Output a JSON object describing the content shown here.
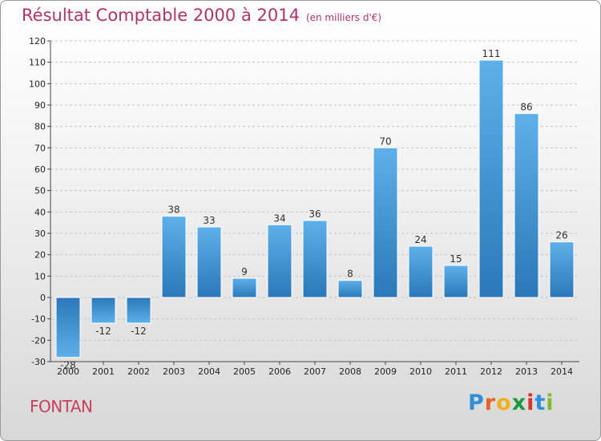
{
  "chart_data": {
    "type": "bar",
    "title": "Résultat Comptable 2000 à 2014",
    "subtitle": "(en milliers d'€)",
    "categories": [
      "2000",
      "2001",
      "2002",
      "2003",
      "2004",
      "2005",
      "2006",
      "2007",
      "2008",
      "2009",
      "2010",
      "2011",
      "2012",
      "2013",
      "2014"
    ],
    "values": [
      -28,
      -12,
      -12,
      38,
      33,
      9,
      34,
      36,
      8,
      70,
      24,
      15,
      111,
      86,
      26
    ],
    "ylim": [
      -30,
      120
    ],
    "yticks": [
      -30,
      -20,
      -10,
      0,
      10,
      20,
      30,
      40,
      50,
      60,
      70,
      80,
      90,
      100,
      110,
      120
    ],
    "grid": true,
    "legend": "none",
    "bar_color_top": "#5eb0ea",
    "bar_color_bottom": "#2a78b8"
  },
  "footer": {
    "commune": "FONTAN",
    "brand_letters": [
      {
        "char": "P",
        "color": "#2f8fd8"
      },
      {
        "char": "r",
        "color": "#e8632a"
      },
      {
        "char": "o",
        "color": "#f2b01e"
      },
      {
        "char": "x",
        "color": "#1c9a3e"
      },
      {
        "char": "i",
        "color": "#d6322e"
      },
      {
        "char": "t",
        "color": "#2f8fd8"
      },
      {
        "char": "i",
        "color": "#7cbc2a"
      }
    ]
  }
}
